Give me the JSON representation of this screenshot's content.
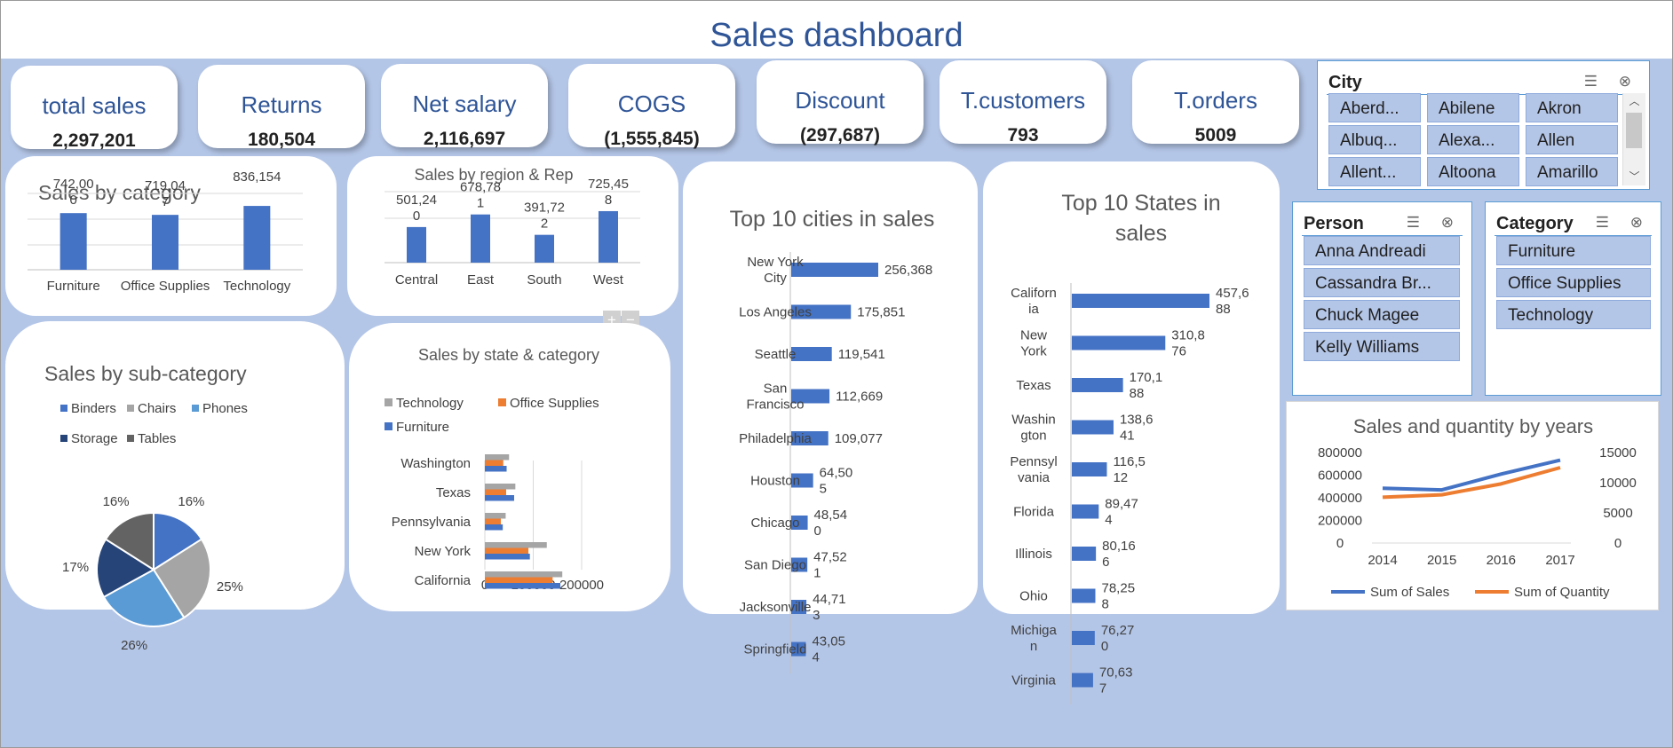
{
  "dashboard": {
    "title": "Sales dashboard"
  },
  "kpis": [
    {
      "label": "total sales",
      "value": "2,297,201"
    },
    {
      "label": "Returns",
      "value": "180,504"
    },
    {
      "label": "Net salary",
      "value": "2,116,697"
    },
    {
      "label": "COGS",
      "value": "(1,555,845)"
    },
    {
      "label": "Discount",
      "value": "(297,687)"
    },
    {
      "label": "T.customers",
      "value": "793"
    },
    {
      "label": "T.orders",
      "value": "5009"
    }
  ],
  "slicers": {
    "city": {
      "title": "City",
      "items": [
        "Aberd...",
        "Abilene",
        "Akron",
        "Albuq...",
        "Alexa...",
        "Allen",
        "Allent...",
        "Altoona",
        "Amarillo"
      ]
    },
    "person": {
      "title": "Person",
      "items": [
        "Anna Andreadi",
        "Cassandra Br...",
        "Chuck Magee",
        "Kelly Williams"
      ]
    },
    "category": {
      "title": "Category",
      "items": [
        "Furniture",
        "Office Supplies",
        "Technology"
      ]
    }
  },
  "colors": {
    "blue": "#4472c4",
    "gray": "#a5a5a5",
    "orange": "#ed7d31",
    "light_blue": "#5b9bd5",
    "dark_blue": "#264478",
    "dark_gray": "#636363",
    "title_blue": "#2f5597",
    "background": "#b4c6e7"
  },
  "chart_data": [
    {
      "id": "sales_by_category",
      "type": "bar",
      "title": "Sales by category",
      "categories": [
        "Furniture",
        "Office Supplies",
        "Technology"
      ],
      "values": [
        742000,
        719047,
        836154
      ],
      "data_labels": [
        "742,00\n0",
        "719,04\n7",
        "836,154"
      ],
      "grid": true
    },
    {
      "id": "sales_by_region",
      "type": "bar",
      "title": "Sales by region & Rep",
      "categories": [
        "Central",
        "East",
        "South",
        "West"
      ],
      "values": [
        501240,
        678781,
        391722,
        725458
      ],
      "data_labels": [
        "501,24\n0",
        "678,78\n1",
        "391,72\n2",
        "725,45\n8"
      ],
      "grid": true,
      "buttons": [
        "+",
        "−"
      ]
    },
    {
      "id": "top10_cities",
      "type": "bar",
      "orientation": "horizontal",
      "title": "Top 10 cities in sales",
      "categories": [
        "New York\nCity",
        "Los Angeles",
        "Seattle",
        "San\nFrancisco",
        "Philadelphia",
        "Houston",
        "Chicago",
        "San Diego",
        "Jacksonville",
        "Springfield"
      ],
      "values": [
        256368,
        175851,
        119541,
        112669,
        109077,
        64505,
        48540,
        47521,
        44713,
        43054
      ],
      "data_labels": [
        "256,368",
        "175,851",
        "119,541",
        "112,669",
        "109,077",
        "64,50\n5",
        "48,54\n0",
        "47,52\n1",
        "44,71\n3",
        "43,05\n4"
      ]
    },
    {
      "id": "top10_states",
      "type": "bar",
      "orientation": "horizontal",
      "title": "Top 10 States in\nsales",
      "categories": [
        "Californ\nia",
        "New\nYork",
        "Texas",
        "Washin\ngton",
        "Pennsyl\nvania",
        "Florida",
        "Illinois",
        "Ohio",
        "Michiga\nn",
        "Virginia"
      ],
      "values": [
        457688,
        310876,
        170188,
        138641,
        116512,
        89474,
        80166,
        78258,
        76270,
        70637
      ],
      "data_labels": [
        "457,6\n88",
        "310,8\n76",
        "170,1\n88",
        "138,6\n41",
        "116,5\n12",
        "89,47\n4",
        "80,16\n6",
        "78,25\n8",
        "76,27\n0",
        "70,63\n7"
      ]
    },
    {
      "id": "sales_by_subcategory",
      "type": "pie",
      "title": "Sales by sub-category",
      "categories": [
        "Binders",
        "Chairs",
        "Phones",
        "Storage",
        "Tables"
      ],
      "values": [
        16,
        25,
        26,
        17,
        16
      ],
      "data_labels": [
        "16%",
        "25%",
        "26%",
        "17%",
        "16%"
      ],
      "legend": "top"
    },
    {
      "id": "sales_by_state_category",
      "type": "bar",
      "orientation": "horizontal",
      "title": "Sales by state & category",
      "categories": [
        "California",
        "New York",
        "Pennsylvania",
        "Texas",
        "Washington"
      ],
      "series": [
        {
          "name": "Furniture",
          "values": [
            156065,
            93000,
            37000,
            60500,
            45000
          ]
        },
        {
          "name": "Office Supplies",
          "values": [
            140000,
            90000,
            33000,
            44000,
            38000
          ]
        },
        {
          "name": "Technology",
          "values": [
            160000,
            128000,
            43000,
            63000,
            50000
          ]
        }
      ],
      "xticks": [
        "0",
        "100000",
        "200000"
      ],
      "xlim": [
        0,
        200000
      ],
      "legend": "top"
    },
    {
      "id": "sales_quantity_by_years",
      "type": "line",
      "title": "Sales and quantity by years",
      "x": [
        "2014",
        "2015",
        "2016",
        "2017"
      ],
      "series": [
        {
          "name": "Sum of Sales",
          "axis": "left",
          "values": [
            484000,
            470000,
            609000,
            733000
          ]
        },
        {
          "name": "Sum of Quantity",
          "axis": "right",
          "values": [
            7600,
            8000,
            9800,
            12500
          ]
        }
      ],
      "y_left_ticks": [
        "800000",
        "600000",
        "400000",
        "200000",
        "0"
      ],
      "y_right_ticks": [
        "15000",
        "10000",
        "5000",
        "0"
      ],
      "ylim_left": [
        0,
        800000
      ],
      "ylim_right": [
        0,
        15000
      ],
      "legend": "bottom"
    }
  ]
}
